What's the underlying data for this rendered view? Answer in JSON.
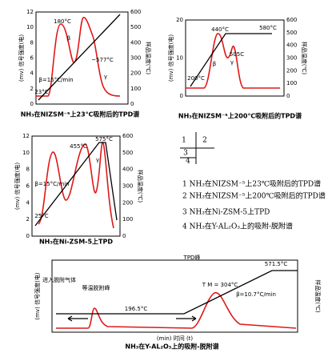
{
  "panels": [
    {
      "caption": "NH₃在NIZSM⁻⁵上23℃吸附后的TPD谱",
      "y_label": "(mv) 信号强度(电)",
      "y2_label": "样品温度(℃)",
      "yticks": [
        "0",
        "2",
        "4",
        "6",
        "8",
        "10",
        "12"
      ],
      "y2ticks": [
        "0",
        "100",
        "200",
        "300",
        "400",
        "500",
        "600"
      ],
      "annotations": [
        "180°C",
        "β",
        "β=15°C/min",
        "~577°C",
        "γ",
        "23°C"
      ]
    },
    {
      "caption": "NH₃在NIZSM⁻⁵上200℃吸附后的TPD谱",
      "y_label": "(mv) 信号强度(电)",
      "y2_label": "样品温度(℃)",
      "yticks": [
        "0",
        "10",
        "20"
      ],
      "y2ticks": [
        "0",
        "100",
        "200",
        "300",
        "400",
        "500",
        "600"
      ],
      "annotations": [
        "440°C",
        "580°C",
        "β",
        "505C",
        "γ",
        "200°C"
      ]
    },
    {
      "caption": "NH₃在Ni-ZSM-5上TPD",
      "y_label": "(mv) 信号强度(电)",
      "y2_label": "样品温度(℃)",
      "yticks": [
        "0",
        "2",
        "4",
        "6",
        "8",
        "10",
        "12"
      ],
      "y2ticks": [
        "0",
        "100",
        "200",
        "300",
        "400",
        "500",
        "600"
      ],
      "annotations": [
        "455°C",
        "575°C",
        "γ",
        "β=15°C/min",
        "25°C"
      ]
    },
    {
      "caption": "NH₃在Y-AL₂O₃上的吸附-脱附谱",
      "y_label": "(mv) 信号强度(电)",
      "y2_label": "样品温度(℃)",
      "x_label": "(min) 时间 (t)",
      "annotations": [
        "TPD峰",
        "等温脱附峰",
        "196.5°C",
        "571.5°C",
        "T M = 304°C",
        "β=10.7°C/min",
        "进入脱附气体"
      ]
    }
  ],
  "key": [
    "1",
    "2",
    "3",
    "4"
  ],
  "legend": [
    "1 NH₃在NIZSM⁻⁵上23℃吸附后的TPD谱",
    "2 NH₃在NIZSM⁻⁵上200℃吸附后的TPD谱",
    "3 NH₃在Ni-ZSM-5上TPD",
    "4 NH₃在Y-AL₂O₃上的吸附-脱附谱"
  ]
}
